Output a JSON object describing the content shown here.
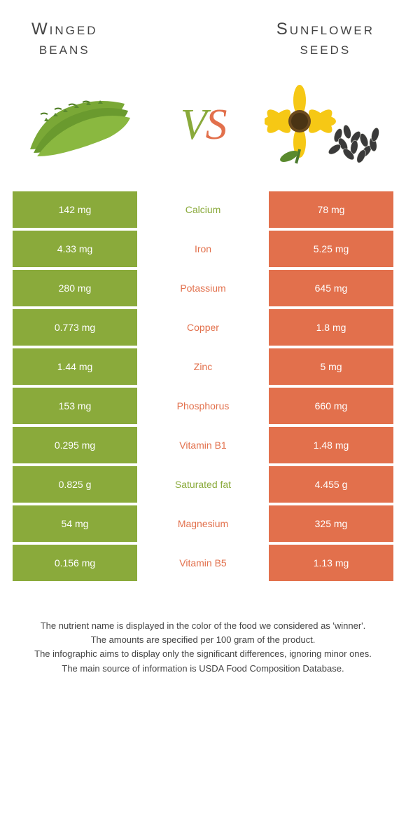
{
  "header": {
    "left_title_line1": "Winged",
    "left_title_line2": "beans",
    "right_title_line1": "Sunflower",
    "right_title_line2": "seeds"
  },
  "vs": {
    "first": "V",
    "second": "S"
  },
  "colors": {
    "green": "#8aaa3b",
    "orange": "#e2704c"
  },
  "rows": [
    {
      "left": "142 mg",
      "label": "Calcium",
      "right": "78 mg",
      "winner": "green"
    },
    {
      "left": "4.33 mg",
      "label": "Iron",
      "right": "5.25 mg",
      "winner": "orange"
    },
    {
      "left": "280 mg",
      "label": "Potassium",
      "right": "645 mg",
      "winner": "orange"
    },
    {
      "left": "0.773 mg",
      "label": "Copper",
      "right": "1.8 mg",
      "winner": "orange"
    },
    {
      "left": "1.44 mg",
      "label": "Zinc",
      "right": "5 mg",
      "winner": "orange"
    },
    {
      "left": "153 mg",
      "label": "Phosphorus",
      "right": "660 mg",
      "winner": "orange"
    },
    {
      "left": "0.295 mg",
      "label": "Vitamin B1",
      "right": "1.48 mg",
      "winner": "orange"
    },
    {
      "left": "0.825 g",
      "label": "Saturated fat",
      "right": "4.455 g",
      "winner": "green"
    },
    {
      "left": "54 mg",
      "label": "Magnesium",
      "right": "325 mg",
      "winner": "orange"
    },
    {
      "left": "0.156 mg",
      "label": "Vitamin B5",
      "right": "1.13 mg",
      "winner": "orange"
    }
  ],
  "footer": {
    "line1": "The nutrient name is displayed in the color of the food we considered as 'winner'.",
    "line2": "The amounts are specified per 100 gram of the product.",
    "line3": "The infographic aims to display only the significant differences, ignoring minor ones.",
    "line4": "The main source of information is USDA Food Composition Database."
  }
}
